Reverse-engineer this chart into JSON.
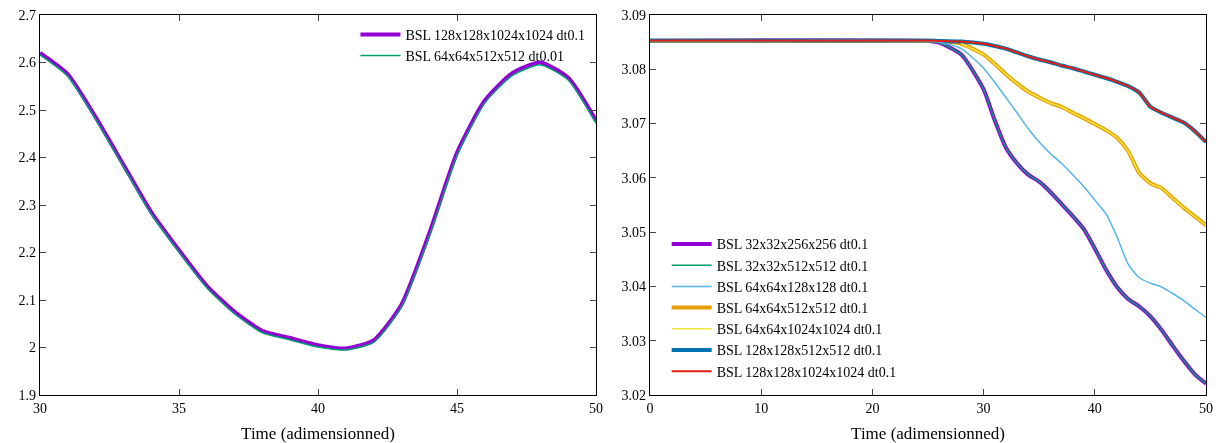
{
  "chart_data": [
    {
      "type": "line",
      "xlabel": "Time (adimensionned)",
      "xlim": [
        30,
        50
      ],
      "xticks": [
        30,
        35,
        40,
        45,
        50
      ],
      "ylim": [
        1.9,
        2.7
      ],
      "yticks": [
        1.9,
        2,
        2.1,
        2.2,
        2.3,
        2.4,
        2.5,
        2.6,
        2.7
      ],
      "grid": false,
      "legend": "top right",
      "line_style": "solid",
      "marker": "none",
      "x": [
        30,
        31,
        32,
        33,
        34,
        35,
        36,
        37,
        38,
        39,
        40,
        41,
        42,
        43,
        44,
        45,
        46,
        47,
        48,
        49,
        50
      ],
      "series": [
        {
          "name": "BSL 128x128x1024x1024 dt0.1",
          "color": "#9400d3",
          "values": [
            2.62,
            2.575,
            2.485,
            2.385,
            2.285,
            2.205,
            2.13,
            2.075,
            2.035,
            2.02,
            2.005,
            1.998,
            2.015,
            2.09,
            2.24,
            2.41,
            2.52,
            2.578,
            2.6,
            2.568,
            2.478
          ]
        },
        {
          "name": "BSL 64x64x512x512 dt0.01",
          "color": "#009e73",
          "values": [
            2.616,
            2.571,
            2.481,
            2.381,
            2.281,
            2.201,
            2.126,
            2.071,
            2.031,
            2.016,
            2.001,
            1.995,
            2.011,
            2.085,
            2.234,
            2.404,
            2.515,
            2.573,
            2.595,
            2.563,
            2.472
          ]
        }
      ]
    },
    {
      "type": "line",
      "xlabel": "Time (adimensionned)",
      "xlim": [
        0,
        50
      ],
      "xticks": [
        0,
        10,
        20,
        30,
        40,
        50
      ],
      "ylim": [
        3.02,
        3.09
      ],
      "yticks": [
        3.02,
        3.03,
        3.04,
        3.05,
        3.06,
        3.07,
        3.08,
        3.09
      ],
      "grid": false,
      "legend": "bottom left",
      "line_style": "solid",
      "marker": "none",
      "x": [
        0,
        25,
        26,
        28,
        30,
        31,
        32,
        33,
        34,
        35,
        36,
        37,
        38,
        39,
        40,
        41,
        42,
        43,
        44,
        45,
        46,
        47,
        48,
        49,
        50
      ],
      "series": [
        {
          "name": "BSL 32x32x256x256 dt0.1",
          "color": "#9400d3",
          "values": [
            3.0852,
            3.0852,
            3.0849,
            3.0827,
            3.0763,
            3.0706,
            3.0656,
            3.0627,
            3.0606,
            3.0593,
            3.0574,
            3.0552,
            3.053,
            3.0506,
            3.047,
            3.0431,
            3.0399,
            3.0377,
            3.0363,
            3.0345,
            3.032,
            3.0291,
            3.0263,
            3.0238,
            3.0221
          ]
        },
        {
          "name": "BSL 32x32x512x512 dt0.1",
          "color": "#009e73",
          "values": [
            3.0852,
            3.0852,
            3.0849,
            3.0827,
            3.0763,
            3.0706,
            3.0656,
            3.0627,
            3.0606,
            3.0593,
            3.0574,
            3.0552,
            3.053,
            3.0506,
            3.047,
            3.0431,
            3.0399,
            3.0377,
            3.0363,
            3.0345,
            3.032,
            3.0291,
            3.0263,
            3.0238,
            3.0221
          ]
        },
        {
          "name": "BSL 64x64x128x128 dt0.1",
          "color": "#56b4e9",
          "values": [
            3.0852,
            3.0852,
            3.085,
            3.0838,
            3.0802,
            3.0776,
            3.0748,
            3.072,
            3.0691,
            3.0666,
            3.0645,
            3.0627,
            3.0606,
            3.0584,
            3.0559,
            3.0534,
            3.0491,
            3.0441,
            3.0416,
            3.0406,
            3.0399,
            3.0387,
            3.0374,
            3.0358,
            3.0343
          ]
        },
        {
          "name": "BSL 64x64x512x512 dt0.1",
          "color": "#e69f00",
          "values": [
            3.0852,
            3.0852,
            3.0852,
            3.0847,
            3.0827,
            3.081,
            3.0791,
            3.0774,
            3.0759,
            3.0748,
            3.0738,
            3.0731,
            3.072,
            3.071,
            3.0699,
            3.0688,
            3.0674,
            3.0649,
            3.0609,
            3.059,
            3.0581,
            3.0563,
            3.0545,
            3.0529,
            3.0513
          ]
        },
        {
          "name": "BSL 64x64x1024x1024 dt0.1",
          "color": "#f0e442",
          "values": [
            null,
            null,
            null,
            3.0847,
            3.0827,
            3.081,
            3.0791,
            3.0774,
            3.0759,
            3.0748,
            3.0738,
            3.0731,
            3.072,
            3.071,
            3.0699,
            3.0688,
            3.0674,
            3.0649,
            3.0609,
            3.059,
            3.0581,
            3.0563,
            3.0545,
            3.0529,
            3.0513
          ]
        },
        {
          "name": "BSL 128x128x512x512 dt0.1",
          "color": "#0072b2",
          "values": [
            3.0853,
            3.0853,
            3.0852,
            3.0851,
            3.0847,
            3.0843,
            3.0838,
            3.0831,
            3.0824,
            3.0818,
            3.0813,
            3.0807,
            3.0802,
            3.0796,
            3.079,
            3.0784,
            3.0777,
            3.0769,
            3.0757,
            3.0731,
            3.072,
            3.0711,
            3.0702,
            3.0686,
            3.0666
          ]
        },
        {
          "name": "BSL 128x128x1024x1024 dt0.1",
          "color": "#e51e10",
          "values": [
            3.0853,
            3.0853,
            3.0852,
            3.0851,
            3.0847,
            3.0843,
            3.0838,
            3.0831,
            3.0824,
            3.0818,
            3.0813,
            3.0807,
            3.0802,
            3.0796,
            3.079,
            3.0784,
            3.0777,
            3.0769,
            3.0757,
            3.0731,
            3.072,
            3.0711,
            3.0702,
            3.0686,
            3.0666
          ]
        }
      ]
    }
  ]
}
